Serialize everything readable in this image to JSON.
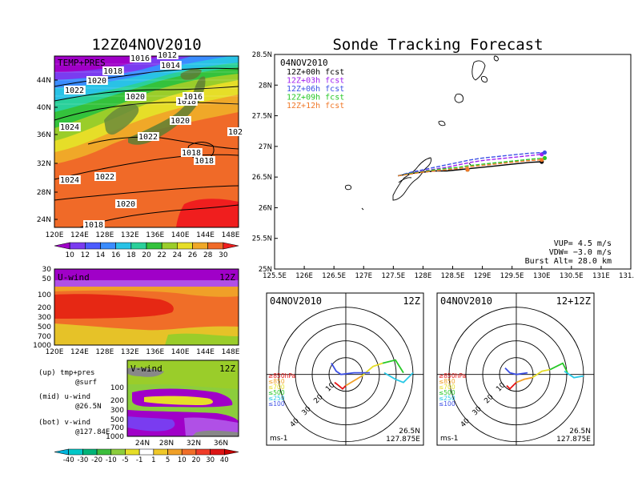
{
  "left_panel": {
    "title": "12Z04NOV2010",
    "map": {
      "label": "TEMP+PRES",
      "lat_ticks": [
        "44N",
        "40N",
        "36N",
        "32N",
        "28N",
        "24N"
      ],
      "lon_ticks": [
        "120E",
        "124E",
        "128E",
        "132E",
        "136E",
        "140E",
        "144E",
        "148E"
      ],
      "isobars": [
        "1016",
        "1012",
        "1014",
        "1018",
        "1020",
        "1022",
        "1020",
        "1018",
        "1016",
        "1024",
        "1020",
        "102",
        "1022",
        "1018",
        "1018",
        "1022",
        "1024",
        "1020",
        "1018"
      ],
      "colorbar_ticks": [
        "10",
        "12",
        "14",
        "16",
        "18",
        "20",
        "22",
        "24",
        "26",
        "28",
        "30"
      ],
      "colorbar_colors": [
        "#a000c8",
        "#7a3cf0",
        "#4c5cff",
        "#3a8cff",
        "#29c2e6",
        "#2ad09a",
        "#34c23c",
        "#9acd2a",
        "#e6de28",
        "#f0a828",
        "#f06a28",
        "#f01e1e"
      ]
    },
    "u_wind": {
      "label": "U-wind",
      "time": "12Z",
      "levels": [
        "30",
        "50",
        "100",
        "200",
        "300",
        "500",
        "700",
        "1000"
      ],
      "lon_ticks": [
        "120E",
        "124E",
        "128E",
        "132E",
        "136E",
        "140E",
        "144E",
        "148E"
      ]
    },
    "v_wind": {
      "label": "V-wind",
      "time": "12Z",
      "levels": [
        "100",
        "200",
        "300",
        "500",
        "700",
        "1000"
      ],
      "lat_ticks": [
        "24N",
        "28N",
        "32N",
        "36N"
      ],
      "colorbar_ticks": [
        "-40",
        "-30",
        "-20",
        "-10",
        "-5",
        "-1",
        "1",
        "5",
        "10",
        "20",
        "30",
        "40"
      ],
      "colorbar_colors": [
        "#00b4dc",
        "#00c8c8",
        "#00b478",
        "#3cbe3c",
        "#8ccd3c",
        "#e6de28",
        "#ffffff",
        "#f0c828",
        "#f0a028",
        "#f06e28",
        "#f03c28",
        "#dc1414",
        "#c80000"
      ]
    },
    "legend": {
      "up_line1": "(up) tmp+pres",
      "up_line2": "@surf",
      "mid_line1": "(mid) u-wind",
      "mid_line2": "@26.5N",
      "bot_line1": "(bot) v-wind",
      "bot_line2": "@127.84E"
    }
  },
  "right_panel": {
    "title": "Sonde Tracking Forecast"
  },
  "chart_data": {
    "type": "line",
    "title": "Sonde Tracking Forecast",
    "date_label": "04NOV2010",
    "xlim": [
      125.5,
      131.5
    ],
    "ylim": [
      25.0,
      28.5
    ],
    "x_ticks": [
      "125.5E",
      "126E",
      "126.5E",
      "127E",
      "127.5E",
      "128E",
      "128.5E",
      "129E",
      "129.5E",
      "130E",
      "130.5E",
      "131E",
      "131.5E"
    ],
    "y_ticks": [
      "25N",
      "25.5N",
      "26N",
      "26.5N",
      "27N",
      "27.5N",
      "28N",
      "28.5N"
    ],
    "series": [
      {
        "name": "12Z+00h fcst",
        "color": "#000000",
        "dash": "3,2",
        "x": [
          127.58,
          127.8,
          128.0,
          128.2,
          128.4,
          128.6,
          128.8,
          129.0,
          129.2,
          129.4,
          129.6,
          129.8,
          130.0
        ],
        "y": [
          26.52,
          26.56,
          26.58,
          26.6,
          26.6,
          26.62,
          26.64,
          26.66,
          26.68,
          26.7,
          26.72,
          26.74,
          26.75
        ]
      },
      {
        "name": "12Z+03h fcst",
        "color": "#a020f0",
        "dash": "5,2",
        "x": [
          127.58,
          127.8,
          128.0,
          128.2,
          128.4,
          128.6,
          128.8,
          129.0,
          129.2,
          129.4,
          129.6,
          129.8,
          130.0
        ],
        "y": [
          26.52,
          26.57,
          26.6,
          26.63,
          26.66,
          26.7,
          26.74,
          26.77,
          26.79,
          26.81,
          26.83,
          26.85,
          26.87
        ]
      },
      {
        "name": "12Z+06h fcst",
        "color": "#3c50e6",
        "dash": "5,2",
        "x": [
          127.58,
          127.8,
          128.0,
          128.2,
          128.4,
          128.6,
          128.8,
          129.0,
          129.2,
          129.4,
          129.6,
          129.8,
          130.05
        ],
        "y": [
          26.52,
          26.58,
          26.62,
          26.66,
          26.7,
          26.74,
          26.78,
          26.81,
          26.83,
          26.85,
          26.87,
          26.89,
          26.9
        ]
      },
      {
        "name": "12Z+09h fcst",
        "color": "#28c828",
        "dash": "5,2",
        "x": [
          127.58,
          127.8,
          128.0,
          128.2,
          128.4,
          128.6,
          128.8,
          129.0,
          129.2,
          129.4,
          129.6,
          129.8,
          130.05
        ],
        "y": [
          26.52,
          26.56,
          26.59,
          26.62,
          26.64,
          26.66,
          26.69,
          26.71,
          26.73,
          26.75,
          26.77,
          26.79,
          26.81
        ]
      },
      {
        "name": "12Z+12h fcst",
        "color": "#f07828",
        "dash": "5,2",
        "x": [
          127.58,
          127.8,
          128.0,
          128.2,
          128.4,
          128.6,
          128.8,
          129.0,
          129.2,
          129.4,
          129.6,
          129.8,
          130.0
        ],
        "y": [
          26.52,
          26.55,
          26.58,
          26.6,
          26.62,
          26.64,
          26.67,
          26.69,
          26.71,
          26.73,
          26.75,
          26.77,
          26.78
        ]
      }
    ],
    "params": {
      "vup": "VUP= 4.5 m/s",
      "vdw": "VDW= −3.0 m/s",
      "burst": "Burst Alt= 28.0 km"
    }
  },
  "hodographs": [
    {
      "date": "04NOV2010",
      "time": "12Z",
      "ring_labels": [
        "10",
        "20",
        "30",
        "40"
      ],
      "pressure_labels": [
        "≥850hPa",
        "≤850",
        "≤700",
        "≤500",
        "≤250",
        "≤100"
      ],
      "pressure_colors": [
        "#e61414",
        "#f0a028",
        "#e6de28",
        "#28c828",
        "#28c8e6",
        "#3c50e6"
      ],
      "unit": "ms-1",
      "loc_lat": "26.5N",
      "loc_lon": "127.875E"
    },
    {
      "date": "04NOV2010",
      "time": "12+12Z",
      "ring_labels": [
        "10",
        "20",
        "30",
        "40"
      ],
      "pressure_labels": [
        "≥850hPa",
        "≤850",
        "≤700",
        "≤500",
        "≤250",
        "≤100"
      ],
      "pressure_colors": [
        "#e61414",
        "#f0a028",
        "#e6de28",
        "#28c828",
        "#28c8e6",
        "#3c50e6"
      ],
      "unit": "ms-1",
      "loc_lat": "26.5N",
      "loc_lon": "127.875E"
    }
  ]
}
